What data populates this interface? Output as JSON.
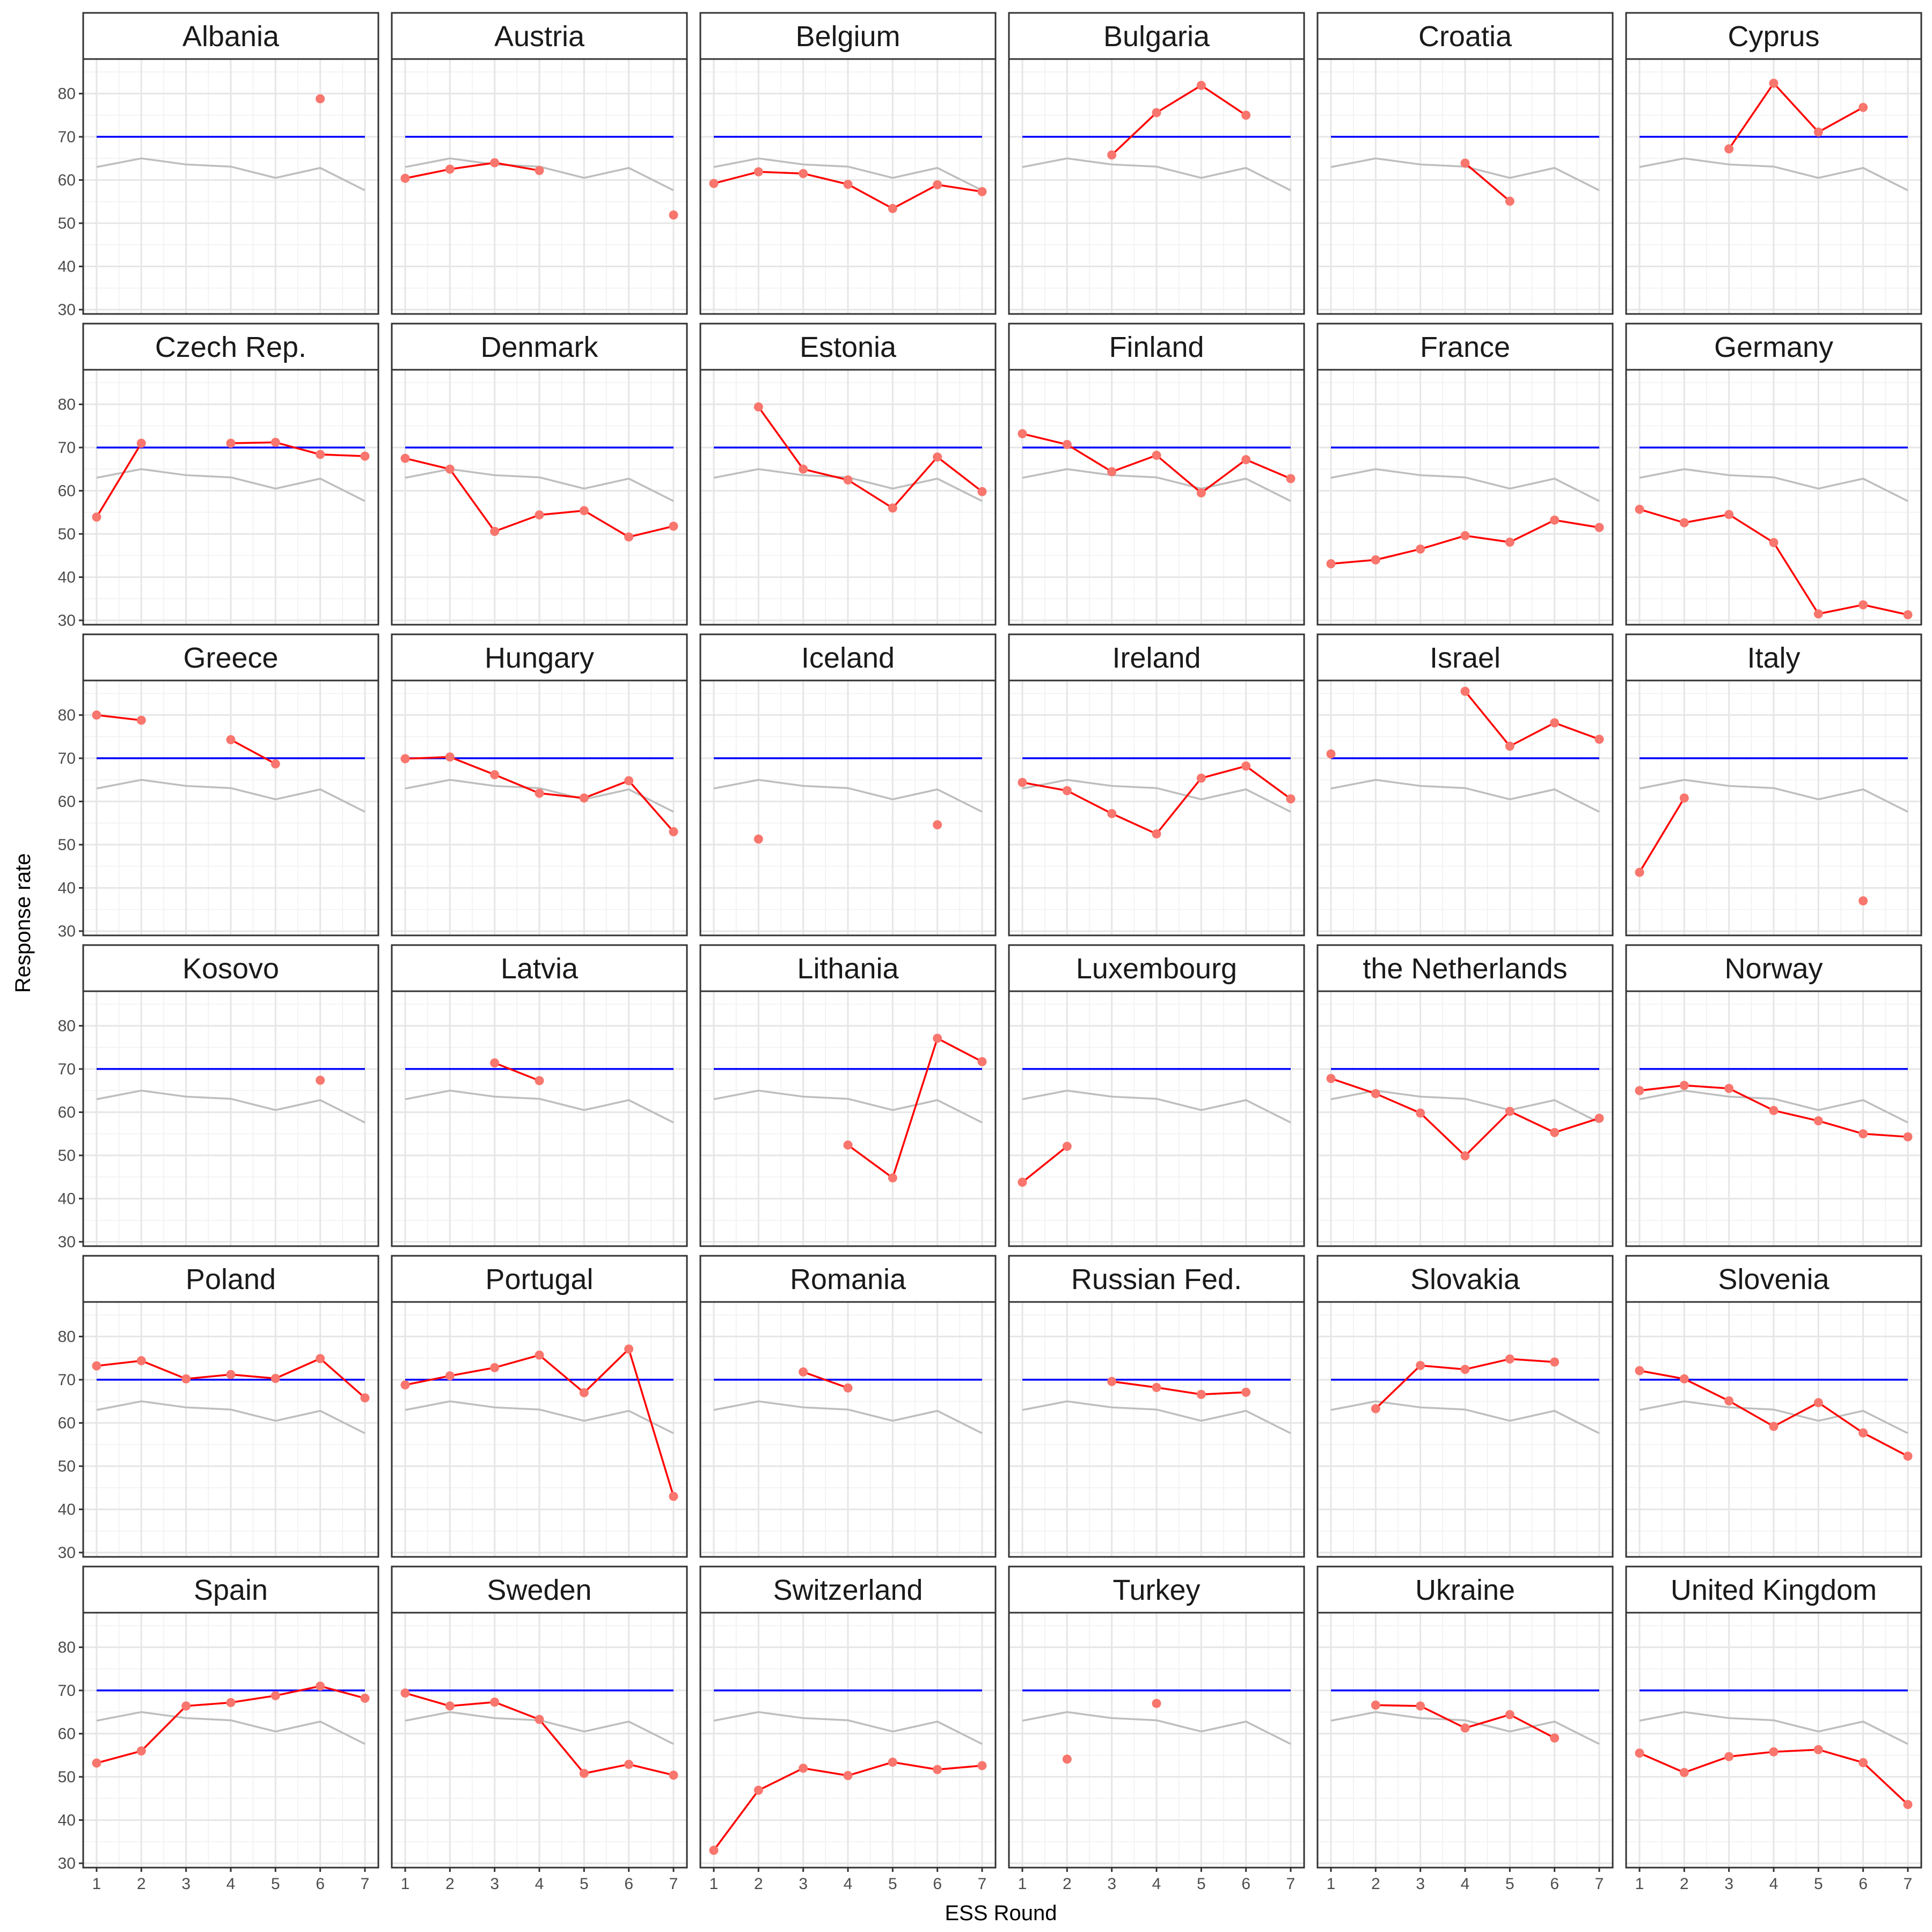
{
  "chart_data": {
    "type": "line",
    "layout": "facet-grid",
    "xlabel": "ESS Round",
    "ylabel": "Response rate",
    "x": [
      1,
      2,
      3,
      4,
      5,
      6,
      7
    ],
    "xticks": [
      "1",
      "2",
      "3",
      "4",
      "5",
      "6",
      "7"
    ],
    "yticks": [
      "30",
      "40",
      "50",
      "60",
      "70",
      "80"
    ],
    "ylim": [
      29,
      88
    ],
    "grid": true,
    "target": 70,
    "average": [
      63.0,
      65.0,
      63.6,
      63.1,
      60.5,
      62.8,
      57.6
    ],
    "colors": {
      "series_line": "#ff0000",
      "series_point": "#f8766d",
      "target": "#0000ff",
      "average": "#bebebe"
    },
    "panels": [
      {
        "name": "Albania",
        "values": [
          null,
          null,
          null,
          null,
          null,
          78.8,
          null
        ]
      },
      {
        "name": "Austria",
        "values": [
          60.4,
          62.5,
          64.0,
          62.2,
          null,
          null,
          51.9
        ]
      },
      {
        "name": "Belgium",
        "values": [
          59.2,
          61.9,
          61.5,
          59.0,
          53.4,
          58.9,
          57.3
        ]
      },
      {
        "name": "Bulgaria",
        "values": [
          null,
          null,
          65.8,
          75.6,
          81.9,
          75.0,
          null
        ]
      },
      {
        "name": "Croatia",
        "values": [
          null,
          null,
          null,
          63.9,
          55.1,
          null,
          null
        ]
      },
      {
        "name": "Cyprus",
        "values": [
          null,
          null,
          67.2,
          82.4,
          71.1,
          76.8,
          null
        ]
      },
      {
        "name": "Czech Rep.",
        "values": [
          53.9,
          71.0,
          null,
          71.0,
          71.2,
          68.4,
          68.0
        ]
      },
      {
        "name": "Denmark",
        "values": [
          67.5,
          65.0,
          50.6,
          54.4,
          55.4,
          49.3,
          51.8
        ]
      },
      {
        "name": "Estonia",
        "values": [
          null,
          79.4,
          65.0,
          62.5,
          56.0,
          67.8,
          59.8
        ]
      },
      {
        "name": "Finland",
        "values": [
          73.2,
          70.7,
          64.4,
          68.2,
          59.5,
          67.2,
          62.8
        ]
      },
      {
        "name": "France",
        "values": [
          43.1,
          44.0,
          46.5,
          49.6,
          48.1,
          53.2,
          51.5
        ]
      },
      {
        "name": "Germany",
        "values": [
          55.7,
          52.6,
          54.5,
          48.0,
          31.5,
          33.6,
          31.3
        ]
      },
      {
        "name": "Greece",
        "values": [
          80.0,
          78.8,
          null,
          74.3,
          68.7,
          null,
          null
        ]
      },
      {
        "name": "Hungary",
        "values": [
          69.9,
          70.3,
          66.2,
          61.9,
          60.8,
          64.8,
          53.0
        ]
      },
      {
        "name": "Iceland",
        "values": [
          null,
          51.3,
          null,
          null,
          null,
          54.6,
          null
        ]
      },
      {
        "name": "Ireland",
        "values": [
          64.4,
          62.5,
          57.2,
          52.5,
          65.4,
          68.2,
          60.6
        ]
      },
      {
        "name": "Israel",
        "values": [
          71.0,
          null,
          null,
          85.5,
          72.8,
          78.2,
          74.4
        ]
      },
      {
        "name": "Italy",
        "values": [
          43.6,
          60.8,
          null,
          null,
          null,
          37.0,
          null
        ]
      },
      {
        "name": "Kosovo",
        "values": [
          null,
          null,
          null,
          null,
          null,
          67.4,
          null
        ]
      },
      {
        "name": "Latvia",
        "values": [
          null,
          null,
          71.4,
          67.3,
          null,
          null,
          null
        ]
      },
      {
        "name": "Lithania",
        "values": [
          null,
          null,
          null,
          52.4,
          44.8,
          77.1,
          71.7
        ]
      },
      {
        "name": "Luxembourg",
        "values": [
          43.8,
          52.1,
          null,
          null,
          null,
          null,
          null
        ]
      },
      {
        "name": "the Netherlands",
        "values": [
          67.8,
          64.3,
          59.8,
          49.9,
          60.2,
          55.3,
          58.6
        ]
      },
      {
        "name": "Norway",
        "values": [
          65.0,
          66.2,
          65.5,
          60.4,
          58.0,
          55.0,
          54.3
        ]
      },
      {
        "name": "Poland",
        "values": [
          73.2,
          74.4,
          70.2,
          71.2,
          70.3,
          74.9,
          65.8
        ]
      },
      {
        "name": "Portugal",
        "values": [
          68.8,
          70.9,
          72.8,
          75.7,
          67.0,
          77.1,
          43.0
        ]
      },
      {
        "name": "Romania",
        "values": [
          null,
          null,
          71.8,
          68.1,
          null,
          null,
          null
        ]
      },
      {
        "name": "Russian Fed.",
        "values": [
          null,
          null,
          69.6,
          68.2,
          66.6,
          67.1,
          null
        ]
      },
      {
        "name": "Slovakia",
        "values": [
          null,
          63.3,
          73.3,
          72.4,
          74.8,
          74.1,
          null
        ]
      },
      {
        "name": "Slovenia",
        "values": [
          72.1,
          70.2,
          65.1,
          59.2,
          64.7,
          57.7,
          52.3
        ]
      },
      {
        "name": "Spain",
        "values": [
          53.2,
          56.0,
          66.4,
          67.2,
          68.8,
          71.0,
          68.2
        ]
      },
      {
        "name": "Sweden",
        "values": [
          69.4,
          66.4,
          67.3,
          63.3,
          50.8,
          52.9,
          50.4
        ]
      },
      {
        "name": "Switzerland",
        "values": [
          33.0,
          46.9,
          52.0,
          50.3,
          53.4,
          51.7,
          52.6
        ]
      },
      {
        "name": "Turkey",
        "values": [
          null,
          54.1,
          null,
          67.0,
          null,
          null,
          null
        ]
      },
      {
        "name": "Ukraine",
        "values": [
          null,
          66.6,
          66.4,
          61.3,
          64.4,
          59.0,
          null
        ]
      },
      {
        "name": "United Kingdom",
        "values": [
          55.5,
          51.0,
          54.7,
          55.8,
          56.3,
          53.3,
          43.6
        ]
      }
    ]
  }
}
